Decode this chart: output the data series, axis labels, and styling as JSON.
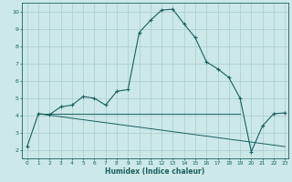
{
  "xlabel": "Humidex (Indice chaleur)",
  "bg_color": "#cce8e8",
  "line_color": "#1a5f5f",
  "grid_color": "#aacccc",
  "xlim": [
    -0.5,
    23.3
  ],
  "ylim": [
    1.5,
    10.5
  ],
  "xticks": [
    0,
    1,
    2,
    3,
    4,
    5,
    6,
    7,
    8,
    9,
    10,
    11,
    12,
    13,
    14,
    15,
    16,
    17,
    18,
    19,
    20,
    21,
    22,
    23
  ],
  "yticks": [
    2,
    3,
    4,
    5,
    6,
    7,
    8,
    9,
    10
  ],
  "curve1_x": [
    0,
    1,
    2,
    3,
    4,
    5,
    6,
    7,
    8,
    9,
    10,
    11,
    12,
    13,
    14,
    15,
    16,
    17,
    18,
    19,
    20,
    21,
    22,
    23
  ],
  "curve1_y": [
    2.2,
    4.1,
    4.05,
    4.5,
    4.6,
    5.1,
    5.0,
    4.6,
    5.4,
    5.5,
    8.8,
    9.5,
    10.1,
    10.15,
    9.3,
    8.5,
    7.1,
    6.7,
    6.2,
    5.0,
    1.9,
    3.4,
    4.1,
    4.15
  ],
  "line1_x": [
    1,
    19
  ],
  "line1_y": [
    4.1,
    4.1
  ],
  "line2_x": [
    1,
    23
  ],
  "line2_y": [
    4.1,
    2.2
  ]
}
